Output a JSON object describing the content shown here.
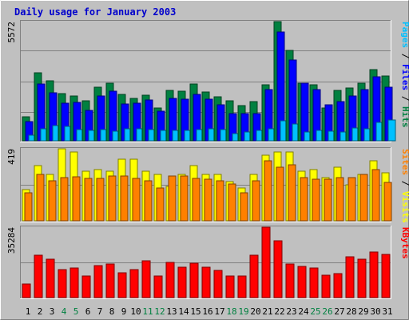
{
  "chart_data": {
    "type": "bar",
    "title": "Daily usage for January 2003",
    "categories": [
      "1",
      "2",
      "3",
      "4",
      "5",
      "6",
      "7",
      "8",
      "9",
      "10",
      "11",
      "12",
      "13",
      "14",
      "15",
      "16",
      "17",
      "18",
      "19",
      "20",
      "21",
      "22",
      "23",
      "24",
      "25",
      "26",
      "27",
      "28",
      "29",
      "30",
      "31"
    ],
    "weekend_days": [
      "4",
      "5",
      "11",
      "12",
      "18",
      "19",
      "25",
      "26"
    ],
    "panels": [
      {
        "name": "requests",
        "ymax_label": "5572",
        "ylim": [
          0,
          5572
        ],
        "right_label": [
          {
            "text": "Pages",
            "color": "#00c0ff"
          },
          {
            "text": " / ",
            "color": "#000000"
          },
          {
            "text": "Files",
            "color": "#0000ff"
          },
          {
            "text": " / ",
            "color": "#000000"
          },
          {
            "text": "Hits",
            "color": "#008040"
          }
        ],
        "series": [
          {
            "name": "Hits",
            "color": "#008040",
            "values": [
              1130,
              3180,
              2790,
              2210,
              2090,
              1860,
              2500,
              2700,
              2160,
              1990,
              2130,
              1550,
              2340,
              2320,
              2640,
              2290,
              2070,
              1870,
              1650,
              1840,
              2610,
              5560,
              4220,
              2700,
              2630,
              1550,
              2360,
              2480,
              2680,
              3320,
              3030
            ]
          },
          {
            "name": "Files",
            "color": "#0000ff",
            "values": [
              880,
              2650,
              2260,
              1770,
              1810,
              1430,
              2110,
              2300,
              1720,
              1740,
              1910,
              1380,
              1970,
              1950,
              2170,
              1960,
              1690,
              1280,
              1270,
              1270,
              2380,
              5100,
              3760,
              2680,
              2390,
              1690,
              1830,
              2100,
              2390,
              2980,
              2520
            ]
          },
          {
            "name": "Pages",
            "color": "#00c0ff",
            "values": [
              280,
              560,
              710,
              680,
              530,
              480,
              510,
              440,
              560,
              560,
              530,
              470,
              490,
              490,
              510,
              560,
              540,
              340,
              430,
              500,
              570,
              920,
              770,
              430,
              490,
              440,
              410,
              610,
              550,
              850,
              960
            ]
          }
        ]
      },
      {
        "name": "visits",
        "ymax_label": "419",
        "ylim": [
          0,
          419
        ],
        "right_label": [
          {
            "text": "Sites",
            "color": "#ff8000"
          },
          {
            "text": " / ",
            "color": "#000000"
          },
          {
            "text": "Visits",
            "color": "#ffff00"
          }
        ],
        "series": [
          {
            "name": "Visits",
            "color": "#ffff00",
            "values": [
              180,
              320,
              270,
              419,
              400,
              290,
              300,
              290,
              360,
              360,
              290,
              270,
              200,
              270,
              320,
              270,
              270,
              230,
              190,
              270,
              380,
              400,
              400,
              290,
              300,
              250,
              310,
              210,
              270,
              350,
              280
            ]
          },
          {
            "name": "Sites",
            "color": "#ff8000",
            "values": [
              165,
              270,
              235,
              250,
              255,
              245,
              245,
              260,
              260,
              245,
              235,
              190,
              260,
              260,
              245,
              240,
              235,
              215,
              165,
              235,
              350,
              310,
              325,
              250,
              240,
              240,
              250,
              250,
              270,
              300,
              225
            ]
          }
        ]
      },
      {
        "name": "kbytes",
        "ymax_label": "35284",
        "ylim": [
          0,
          35284
        ],
        "right_label": [
          {
            "text": "KBytes",
            "color": "#ff0000"
          }
        ],
        "series": [
          {
            "name": "KBytes",
            "color": "#ff0000",
            "values": [
              6900,
              21100,
              19100,
              14000,
              15000,
              10900,
              15900,
              16800,
              12500,
              13900,
              18400,
              10800,
              17600,
              15400,
              17300,
              15400,
              13600,
              10900,
              10800,
              21200,
              35284,
              28500,
              17000,
              15800,
              14900,
              11400,
              12100,
              20400,
              19400,
              22700,
              21500
            ]
          }
        ]
      }
    ]
  }
}
